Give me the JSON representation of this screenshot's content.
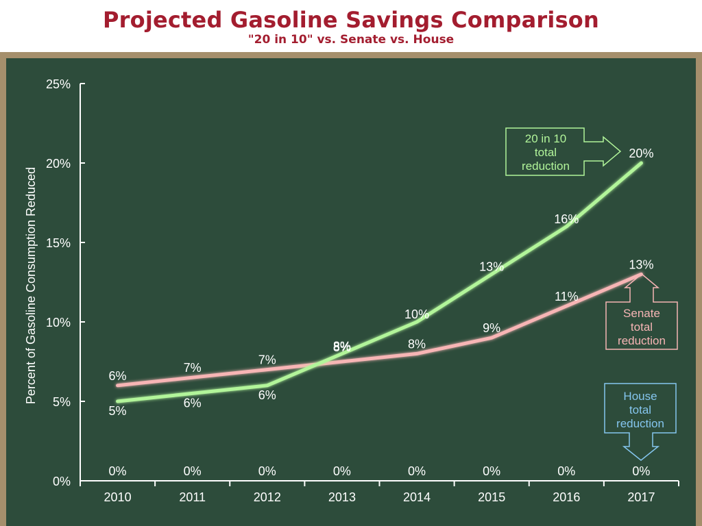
{
  "header": {
    "title": "Projected Gasoline Savings Comparison",
    "subtitle": "\"20 in 10\" vs. Senate vs. House"
  },
  "chart_data": {
    "type": "line",
    "x": [
      "2010",
      "2011",
      "2012",
      "2013",
      "2014",
      "2015",
      "2016",
      "2017"
    ],
    "ylabel": "Percent of Gasoline Consumption Reduced",
    "xlabel": "",
    "ylim": [
      0,
      25
    ],
    "yticks": [
      "0%",
      "5%",
      "10%",
      "15%",
      "20%",
      "25%"
    ],
    "series": [
      {
        "name": "20 in 10 total reduction",
        "color": "#b2f59a",
        "values": [
          5,
          5.5,
          6,
          8,
          10,
          13,
          16,
          20
        ],
        "labels": [
          "5%",
          "6%",
          "6%",
          "8%",
          "10%",
          "13%",
          "16%",
          "20%"
        ]
      },
      {
        "name": "Senate total reduction",
        "color": "#f7b5b5",
        "values": [
          6,
          6.5,
          7,
          7.5,
          8,
          9,
          11,
          13
        ],
        "labels": [
          "6%",
          "7%",
          "7%",
          "8%",
          "8%",
          "9%",
          "11%",
          "13%"
        ]
      },
      {
        "name": "House total reduction",
        "color": "#85c6ef",
        "values": [
          0,
          0,
          0,
          0,
          0,
          0,
          0,
          0
        ],
        "labels": [
          "0%",
          "0%",
          "0%",
          "0%",
          "0%",
          "0%",
          "0%",
          "0%"
        ]
      }
    ],
    "annotations": [
      {
        "series": "20 in 10 total reduction",
        "lines": [
          "20 in 10",
          "total",
          "reduction"
        ]
      },
      {
        "series": "Senate total reduction",
        "lines": [
          "Senate",
          "total",
          "reduction"
        ]
      },
      {
        "series": "House total reduction",
        "lines": [
          "House",
          "total",
          "reduction"
        ]
      }
    ]
  }
}
